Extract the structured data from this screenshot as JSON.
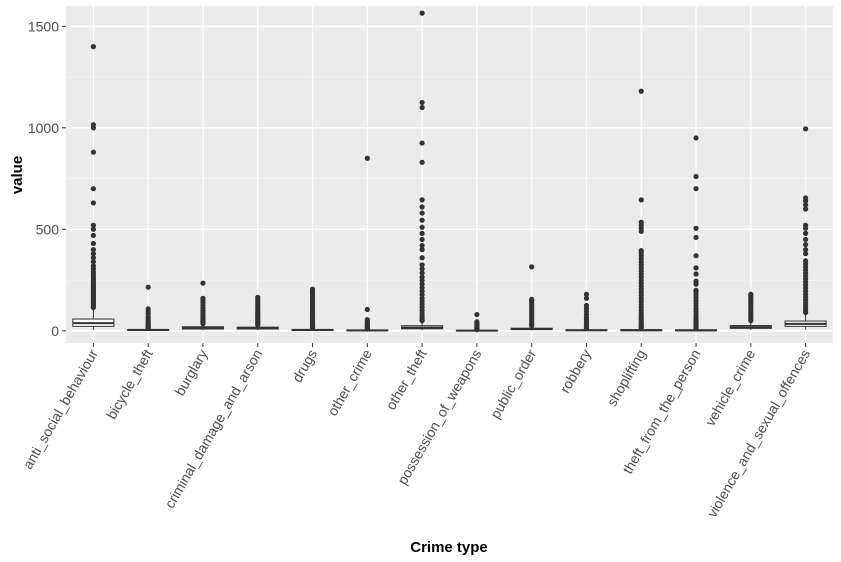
{
  "chart_data": {
    "type": "box",
    "xlabel": "Crime type",
    "ylabel": "value",
    "ylim": [
      -60,
      1600
    ],
    "yticks": [
      0,
      500,
      1000,
      1500
    ],
    "grid": true,
    "legend": "none",
    "colors": {
      "panel": "#ebebeb",
      "grid_major": "#ffffff",
      "grid_minor": "#f5f5f5",
      "box_fill": "#ffffff",
      "box_line": "#333333",
      "outlier": "#333333"
    },
    "categories": [
      "anti_social_behaviour",
      "bicycle_theft",
      "burglary",
      "criminal_damage_and_arson",
      "drugs",
      "other_crime",
      "other_theft",
      "possession_of_weapons",
      "public_order",
      "robbery",
      "shoplifting",
      "theft_from_the_person",
      "vehicle_crime",
      "violence_and_sexual_offences"
    ],
    "boxes": [
      {
        "min": 5,
        "q1": 22,
        "median": 38,
        "q3": 58,
        "max": 110,
        "outliers": [
          115,
          120,
          128,
          135,
          142,
          150,
          158,
          165,
          172,
          180,
          188,
          195,
          203,
          212,
          220,
          228,
          236,
          245,
          255,
          265,
          278,
          290,
          305,
          320,
          340,
          360,
          380,
          400,
          430,
          470,
          500,
          520,
          630,
          700,
          880,
          1000,
          1015,
          1400
        ]
      },
      {
        "min": 0,
        "q1": 2,
        "median": 4,
        "q3": 7,
        "max": 12,
        "outliers": [
          14,
          18,
          22,
          28,
          35,
          42,
          50,
          60,
          70,
          85,
          95,
          108,
          215
        ]
      },
      {
        "min": 3,
        "q1": 9,
        "median": 14,
        "q3": 20,
        "max": 32,
        "outliers": [
          35,
          40,
          48,
          55,
          62,
          70,
          80,
          90,
          100,
          112,
          125,
          138,
          150,
          160,
          235
        ]
      },
      {
        "min": 3,
        "q1": 9,
        "median": 13,
        "q3": 18,
        "max": 28,
        "outliers": [
          30,
          35,
          42,
          50,
          58,
          65,
          72,
          80,
          88,
          95,
          105,
          115,
          125,
          135,
          145,
          155,
          165
        ]
      },
      {
        "min": 0,
        "q1": 2,
        "median": 4,
        "q3": 7,
        "max": 13,
        "outliers": [
          15,
          20,
          28,
          36,
          45,
          55,
          65,
          75,
          85,
          95,
          108,
          120,
          132,
          145,
          158,
          170,
          182,
          192,
          200,
          205
        ]
      },
      {
        "min": 0,
        "q1": 1,
        "median": 2,
        "q3": 4,
        "max": 7,
        "outliers": [
          9,
          12,
          16,
          20,
          26,
          32,
          40,
          48,
          55,
          105,
          850
        ]
      },
      {
        "min": 3,
        "q1": 10,
        "median": 16,
        "q3": 25,
        "max": 45,
        "outliers": [
          50,
          60,
          72,
          85,
          100,
          115,
          130,
          145,
          160,
          178,
          195,
          212,
          230,
          248,
          265,
          285,
          305,
          325,
          360,
          400,
          420,
          450,
          480,
          510,
          545,
          580,
          610,
          645,
          830,
          925,
          1100,
          1125,
          1565
        ]
      },
      {
        "min": 0,
        "q1": 0,
        "median": 1,
        "q3": 2,
        "max": 4,
        "outliers": [
          6,
          9,
          13,
          18,
          24,
          30,
          38,
          45,
          80
        ]
      },
      {
        "min": 2,
        "q1": 6,
        "median": 9,
        "q3": 13,
        "max": 22,
        "outliers": [
          25,
          30,
          38,
          46,
          55,
          64,
          73,
          82,
          92,
          102,
          112,
          122,
          132,
          142,
          150,
          155,
          315
        ]
      },
      {
        "min": 0,
        "q1": 2,
        "median": 3,
        "q3": 5,
        "max": 9,
        "outliers": [
          11,
          15,
          20,
          27,
          35,
          45,
          55,
          65,
          80,
          95,
          110,
          125,
          160,
          180
        ]
      },
      {
        "min": 0,
        "q1": 1,
        "median": 3,
        "q3": 6,
        "max": 12,
        "outliers": [
          14,
          18,
          24,
          30,
          38,
          46,
          55,
          65,
          75,
          88,
          100,
          115,
          130,
          145,
          160,
          175,
          190,
          205,
          220,
          235,
          250,
          265,
          280,
          295,
          310,
          325,
          340,
          355,
          370,
          385,
          395,
          490,
          505,
          520,
          535,
          645,
          1180
        ]
      },
      {
        "min": 0,
        "q1": 1,
        "median": 2,
        "q3": 5,
        "max": 10,
        "outliers": [
          12,
          16,
          22,
          28,
          35,
          42,
          50,
          60,
          70,
          82,
          95,
          108,
          122,
          136,
          150,
          164,
          178,
          192,
          200,
          230,
          245,
          280,
          310,
          370,
          460,
          505,
          700,
          760,
          950
        ]
      },
      {
        "min": 4,
        "q1": 12,
        "median": 18,
        "q3": 26,
        "max": 45,
        "outliers": [
          50,
          58,
          66,
          75,
          85,
          95,
          105,
          115,
          125,
          135,
          145,
          155,
          165,
          175,
          180
        ]
      },
      {
        "min": 6,
        "q1": 22,
        "median": 34,
        "q3": 48,
        "max": 85,
        "outliers": [
          90,
          100,
          112,
          125,
          138,
          152,
          166,
          180,
          195,
          210,
          225,
          240,
          255,
          270,
          285,
          300,
          315,
          330,
          345,
          380,
          400,
          425,
          450,
          480,
          505,
          520,
          600,
          620,
          640,
          655,
          995
        ]
      }
    ]
  }
}
